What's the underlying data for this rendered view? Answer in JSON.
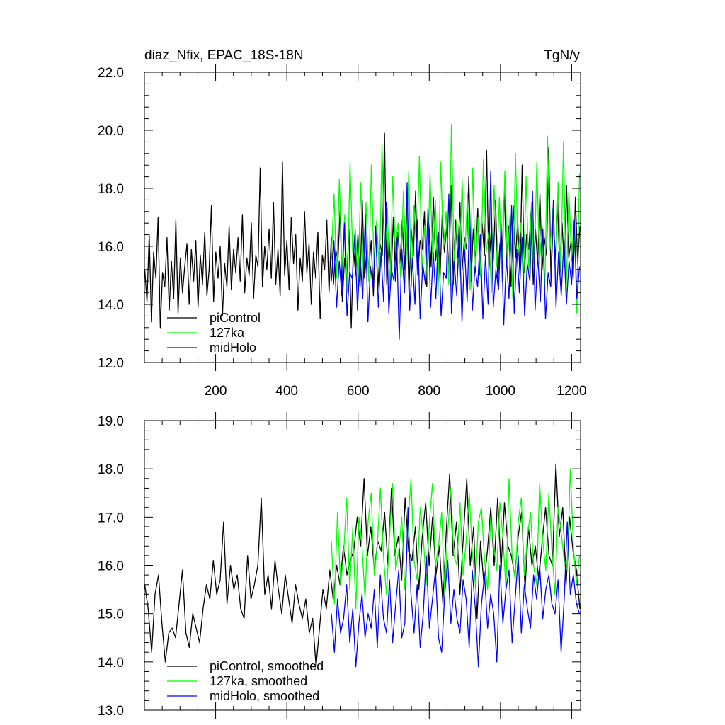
{
  "chart_data": [
    {
      "type": "line",
      "title": "diaz_Nfix, EPAC_18S-18N",
      "units": "TgN/y",
      "xlim": [
        0,
        1225
      ],
      "ylim": [
        12.0,
        22.0
      ],
      "x_ticks": [
        200,
        400,
        600,
        800,
        1000,
        1200
      ],
      "x_tick_labels": [
        "200",
        "400",
        "600",
        "800",
        "1000",
        "1200"
      ],
      "y_ticks": [
        12,
        14,
        16,
        18,
        20,
        22
      ],
      "y_tick_labels": [
        "12.0",
        "14.0",
        "16.0",
        "18.0",
        "20.0",
        "22.0"
      ],
      "legend": [
        "piControl",
        "127ka",
        "midHolo"
      ],
      "series": [
        {
          "name": "piControl",
          "color": "#000000",
          "x_start": 1,
          "x_end": 1223,
          "values": [
            15.2,
            14.1,
            16.4,
            13.4,
            15.8,
            14.9,
            17.0,
            13.2,
            15.1,
            14.6,
            16.3,
            13.8,
            15.5,
            14.2,
            16.9,
            13.7,
            15.6,
            14.4,
            15.3,
            16.1,
            14.0,
            15.9,
            14.8,
            16.2,
            13.9,
            15.7,
            14.7,
            16.5,
            14.3,
            15.2,
            17.4,
            14.1,
            15.8,
            14.9,
            16.0,
            13.6,
            15.4,
            14.6,
            16.7,
            14.5,
            15.9,
            15.1,
            16.3,
            14.8,
            17.1,
            14.4,
            15.6,
            15.0,
            16.8,
            14.2,
            15.7,
            15.3,
            18.7,
            14.6,
            16.0,
            15.2,
            16.6,
            14.9,
            17.5,
            14.7,
            15.9,
            14.3,
            18.9,
            15.0,
            16.2,
            14.5,
            17.0,
            15.4,
            16.4,
            13.8,
            15.6,
            14.8,
            17.2,
            15.1,
            16.1,
            14.0,
            15.8,
            14.9,
            16.5,
            13.5,
            15.7,
            15.2,
            16.9,
            14.4,
            16.3,
            14.7,
            15.9,
            15.5,
            17.3,
            14.1,
            15.6,
            14.8,
            16.6,
            13.2,
            16.0,
            15.0,
            16.4,
            14.6,
            17.6,
            14.9,
            15.8,
            15.3,
            16.2,
            14.3,
            16.7,
            14.5,
            16.1,
            15.7,
            19.9,
            14.7,
            16.3,
            15.0,
            17.0,
            14.8,
            16.5,
            15.4,
            16.9,
            15.2,
            17.4,
            14.4,
            16.6,
            15.7,
            17.9,
            15.0,
            16.2,
            15.9,
            17.2,
            14.6,
            16.8,
            15.3,
            17.7,
            15.5,
            16.4,
            14.9,
            17.1,
            15.8,
            16.7,
            15.1,
            18.1,
            14.7,
            16.9,
            15.6,
            17.5,
            15.2,
            16.3,
            15.9,
            18.4,
            14.8,
            16.6,
            15.4,
            17.3,
            15.0,
            16.8,
            15.7,
            19.3,
            15.2,
            16.5,
            15.5,
            17.6,
            14.9,
            16.1,
            15.8,
            17.9,
            15.3,
            16.7,
            14.6,
            17.4,
            15.6,
            16.9,
            15.0,
            18.8,
            15.1,
            16.4,
            15.9,
            17.2,
            14.7,
            16.6,
            15.4,
            17.8,
            15.2,
            16.3,
            15.7,
            19.4,
            14.8,
            17.0,
            15.5,
            17.5,
            15.0,
            16.8,
            15.3,
            18.1,
            15.6,
            16.2,
            14.9,
            17.7,
            15.4,
            16.7
          ],
          "smoothed": false
        },
        {
          "name": "127ka",
          "color": "#00ff00",
          "x_start": 525,
          "x_end": 1222,
          "values": [
            15.6,
            17.8,
            14.9,
            18.3,
            15.2,
            17.1,
            14.4,
            18.9,
            15.8,
            16.6,
            14.7,
            18.2,
            15.1,
            17.5,
            14.8,
            18.8,
            15.4,
            16.9,
            15.0,
            19.5,
            15.6,
            17.3,
            14.5,
            18.4,
            15.9,
            16.8,
            14.9,
            17.9,
            15.3,
            18.6,
            14.6,
            17.4,
            15.7,
            19.1,
            15.2,
            16.7,
            14.8,
            18.5,
            15.5,
            17.6,
            14.3,
            18.9,
            15.9,
            17.2,
            14.7,
            20.2,
            15.4,
            16.9,
            15.0,
            18.3,
            15.6,
            17.8,
            14.5,
            18.7,
            15.2,
            17.0,
            14.9,
            19.0,
            15.8,
            16.5,
            14.4,
            18.1,
            15.3,
            17.7,
            14.8,
            18.6,
            15.5,
            17.1,
            14.2,
            19.2,
            15.7,
            16.8,
            14.6,
            18.4,
            15.1,
            17.5,
            15.0,
            18.9,
            15.4,
            16.7,
            14.5,
            19.8,
            15.9,
            17.3,
            14.9,
            18.2,
            15.2,
            19.6,
            14.3,
            17.9,
            15.6,
            16.9,
            13.7,
            18.5
          ],
          "smoothed": false
        },
        {
          "name": "midHolo",
          "color": "#0000ff",
          "x_start": 525,
          "x_end": 1222,
          "values": [
            14.8,
            16.2,
            13.9,
            15.5,
            14.3,
            16.8,
            13.6,
            15.1,
            14.9,
            16.4,
            13.8,
            15.7,
            14.2,
            17.1,
            13.4,
            15.3,
            14.6,
            16.6,
            13.9,
            15.8,
            14.1,
            17.5,
            13.7,
            15.2,
            14.8,
            16.3,
            12.8,
            15.9,
            14.4,
            18.2,
            13.8,
            15.6,
            14.0,
            16.9,
            13.5,
            15.4,
            14.7,
            17.3,
            13.9,
            15.8,
            14.2,
            16.5,
            13.6,
            15.1,
            14.9,
            17.8,
            13.7,
            15.5,
            14.3,
            16.7,
            13.4,
            15.9,
            14.1,
            17.2,
            13.8,
            15.3,
            14.6,
            16.4,
            13.5,
            15.7,
            14.0,
            18.6,
            13.9,
            15.2,
            14.5,
            16.8,
            13.3,
            15.6,
            14.2,
            17.4,
            13.7,
            15.9,
            14.4,
            16.3,
            13.6,
            15.4,
            14.8,
            17.9,
            13.8,
            15.7,
            14.1,
            16.6,
            13.5,
            15.1,
            14.6,
            17.6,
            13.9,
            15.8,
            14.3,
            16.2,
            14.0,
            15.5,
            14.7,
            16.9,
            14.2,
            15.3
          ],
          "smoothed": false
        }
      ]
    },
    {
      "type": "line",
      "title": "",
      "xlim": [
        0,
        1225
      ],
      "ylim": [
        13.0,
        19.0
      ],
      "x_ticks": [
        200,
        400,
        600,
        800,
        1000,
        1200
      ],
      "x_tick_labels": [],
      "y_ticks": [
        13,
        14,
        15,
        16,
        17,
        18,
        19
      ],
      "y_tick_labels": [
        "13.0",
        "14.0",
        "15.0",
        "16.0",
        "17.0",
        "18.0",
        "19.0"
      ],
      "legend": [
        "piControl, smoothed",
        "127ka, smoothed",
        "midHolo, smoothed"
      ],
      "series": [
        {
          "name": "piControl, smoothed",
          "color": "#000000",
          "x_start": 1,
          "x_end": 1223,
          "values": [
            15.6,
            15.1,
            14.2,
            15.4,
            15.8,
            14.8,
            14.0,
            14.6,
            14.7,
            14.5,
            15.2,
            15.9,
            14.6,
            14.3,
            15.0,
            14.7,
            14.4,
            15.1,
            15.6,
            15.3,
            16.1,
            15.4,
            15.7,
            16.9,
            15.2,
            16.0,
            15.5,
            15.8,
            15.1,
            14.9,
            16.2,
            15.3,
            15.6,
            16.0,
            17.4,
            15.4,
            15.8,
            15.1,
            16.1,
            15.5,
            15.0,
            15.8,
            15.3,
            14.8,
            15.6,
            15.2,
            14.9,
            15.3,
            14.6,
            14.9,
            13.9,
            14.7,
            15.5,
            15.1,
            15.9,
            15.3,
            16.0,
            15.6,
            16.4,
            15.8,
            16.1,
            16.3,
            17.0,
            16.4,
            17.8,
            16.2,
            16.8,
            15.9,
            16.5,
            16.3,
            17.1,
            16.0,
            17.6,
            16.2,
            16.6,
            15.7,
            17.4,
            16.3,
            16.1,
            16.8,
            15.5,
            16.6,
            17.3,
            16.0,
            17.0,
            15.8,
            16.4,
            15.2,
            16.7,
            17.9,
            16.2,
            16.9,
            15.4,
            16.6,
            17.8,
            16.0,
            16.8,
            14.9,
            16.5,
            15.6,
            16.3,
            17.2,
            16.0,
            17.4,
            15.9,
            17.3,
            16.4,
            16.2,
            15.8,
            16.6,
            17.1,
            15.5,
            16.8,
            16.0,
            16.4,
            15.7,
            16.5,
            17.2,
            16.2,
            16.0,
            18.1,
            16.6,
            17.2,
            15.6,
            17.0,
            16.3,
            15.9,
            15.1
          ],
          "smoothed": true
        },
        {
          "name": "127ka, smoothed",
          "color": "#00ff00",
          "x_start": 525,
          "x_end": 1222,
          "values": [
            16.5,
            15.2,
            17.1,
            15.6,
            16.2,
            17.4,
            15.5,
            16.8,
            15.1,
            17.0,
            16.4,
            15.3,
            16.9,
            17.5,
            15.8,
            16.4,
            17.6,
            16.2,
            15.4,
            16.6,
            17.7,
            15.9,
            16.3,
            17.0,
            15.5,
            16.8,
            17.8,
            16.1,
            15.7,
            17.2,
            16.6,
            15.6,
            16.9,
            17.7,
            16.0,
            16.4,
            17.1,
            15.4,
            16.7,
            17.6,
            16.2,
            16.0,
            17.3,
            15.8,
            16.5,
            17.5,
            16.3,
            15.6,
            16.9,
            17.2,
            16.1,
            15.5,
            17.0,
            16.4,
            15.9,
            17.3,
            16.6,
            15.5,
            17.8,
            16.2,
            15.7,
            16.9,
            17.4,
            15.8,
            16.6,
            17.1,
            16.0,
            15.6,
            17.7,
            16.5,
            15.9,
            17.5,
            16.3,
            15.4,
            17.2,
            16.7,
            16.1,
            15.9,
            18.0,
            16.4,
            15.6,
            16.2
          ],
          "smoothed": true
        },
        {
          "name": "midHolo, smoothed",
          "color": "#0000ff",
          "x_start": 525,
          "x_end": 1222,
          "values": [
            15.0,
            14.2,
            15.3,
            14.6,
            14.9,
            15.6,
            14.4,
            15.1,
            13.9,
            14.8,
            15.4,
            14.5,
            15.0,
            14.7,
            15.5,
            14.3,
            15.8,
            14.9,
            14.6,
            15.7,
            14.4,
            15.2,
            15.9,
            14.5,
            14.8,
            17.2,
            15.4,
            14.6,
            15.6,
            14.3,
            15.0,
            16.2,
            14.7,
            15.3,
            15.9,
            14.5,
            14.2,
            15.4,
            16.1,
            14.8,
            15.5,
            14.9,
            14.6,
            15.7,
            15.3,
            14.3,
            15.9,
            15.1,
            13.9,
            15.2,
            15.8,
            14.7,
            15.4,
            15.0,
            14.0,
            16.0,
            14.8,
            15.5,
            15.9,
            14.4,
            15.3,
            16.2,
            14.6,
            15.6,
            15.1,
            14.7,
            15.8,
            15.3,
            16.0,
            14.9,
            15.5,
            15.8,
            15.2,
            15.0,
            15.7,
            14.2,
            15.3,
            16.9,
            15.4,
            15.8,
            15.2,
            15.0
          ],
          "smoothed": true
        }
      ]
    }
  ]
}
